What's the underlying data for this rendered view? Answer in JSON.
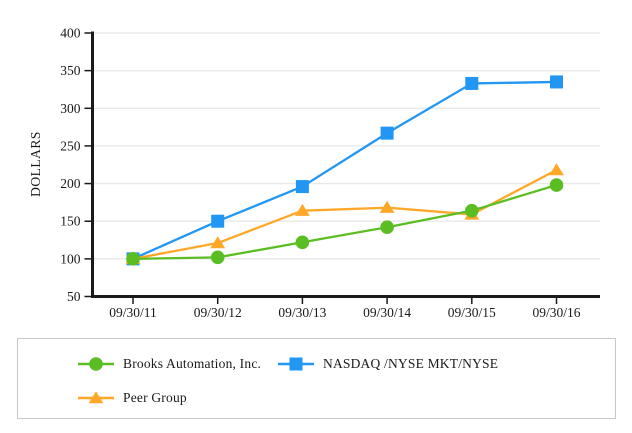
{
  "window": {
    "background": "#ffffff"
  },
  "chart_data": {
    "type": "line",
    "title": "",
    "xlabel": "",
    "ylabel": "DOLLARS",
    "categories": [
      "09/30/11",
      "09/30/12",
      "09/30/13",
      "09/30/14",
      "09/30/15",
      "09/30/16"
    ],
    "ylim": [
      50,
      400
    ],
    "yticks": [
      50,
      100,
      150,
      200,
      250,
      300,
      350,
      400
    ],
    "grid": true,
    "legend_position": "boxed-below",
    "series": [
      {
        "name": "Brooks Automation, Inc.",
        "marker": "circle",
        "color": "#5abe23",
        "values": [
          100,
          102,
          122,
          142,
          164,
          198
        ]
      },
      {
        "name": "NASDAQ /NYSE MKT/NYSE",
        "marker": "square",
        "color": "#2196f3",
        "values": [
          100,
          150,
          196,
          267,
          333,
          335
        ]
      },
      {
        "name": "Peer Group",
        "marker": "triangle",
        "color": "#ffa726",
        "values": [
          100,
          121,
          164,
          168,
          159,
          218
        ]
      }
    ],
    "draw_order": [
      1,
      2,
      0
    ],
    "legend_order": [
      0,
      1,
      2
    ]
  },
  "colors": {
    "axis": "#1a1a1a",
    "grid": "#e9e9e9",
    "tick_text": "#1a1a1a",
    "legend_border": "#c9c9c9"
  }
}
